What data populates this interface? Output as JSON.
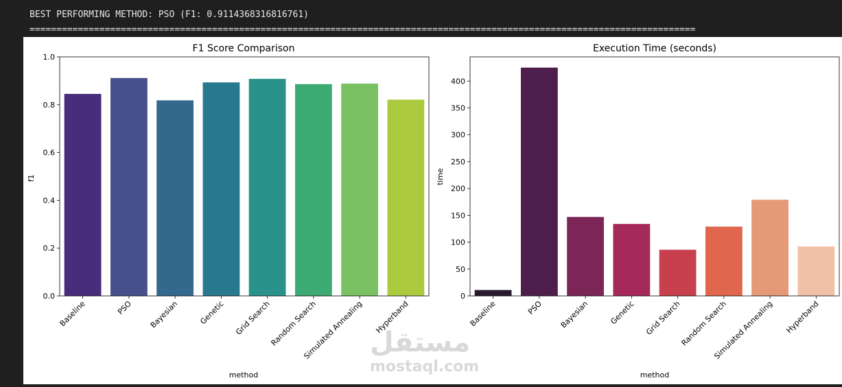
{
  "console": {
    "rule": "============================================================================================================================",
    "best_line": "BEST PERFORMING METHOD: PSO (F1: 0.9114368316816761)"
  },
  "colors": {
    "f1_palette": [
      "#472d7b",
      "#46508a",
      "#35688d",
      "#28788e",
      "#29938b",
      "#3eaa74",
      "#79c163",
      "#acca3d"
    ],
    "time_palette": [
      "#2a1a30",
      "#4e1f4c",
      "#7c2658",
      "#a52a5a",
      "#c83f4e",
      "#e1664e",
      "#e69977",
      "#f0c1a6"
    ]
  },
  "watermark": {
    "brand_arabic": "مستقل",
    "brand_latin": "mostaql.com"
  },
  "chart_data": [
    {
      "type": "bar",
      "title": "F1 Score Comparison",
      "xlabel": "method",
      "ylabel": "f1",
      "categories": [
        "Baseline",
        "PSO",
        "Bayesian",
        "Genetic",
        "Grid Search",
        "Random Search",
        "Simulated Annealing",
        "Hyperband"
      ],
      "values": [
        0.845,
        0.9114,
        0.818,
        0.893,
        0.908,
        0.886,
        0.888,
        0.821
      ],
      "ylim": [
        0,
        1.0
      ],
      "yticks": [
        "0.0",
        "0.2",
        "0.4",
        "0.6",
        "0.8",
        "1.0"
      ],
      "grid": false,
      "legend": "none"
    },
    {
      "type": "bar",
      "title": "Execution Time (seconds)",
      "xlabel": "method",
      "ylabel": "time",
      "categories": [
        "Baseline",
        "PSO",
        "Bayesian",
        "Genetic",
        "Grid Search",
        "Random Search",
        "Simulated Annealing",
        "Hyperband"
      ],
      "values": [
        11,
        425,
        147,
        134,
        86,
        129,
        179,
        92
      ],
      "ylim": [
        0,
        445
      ],
      "yticks": [
        "0",
        "50",
        "100",
        "150",
        "200",
        "250",
        "300",
        "350",
        "400"
      ],
      "grid": false,
      "legend": "none"
    }
  ]
}
